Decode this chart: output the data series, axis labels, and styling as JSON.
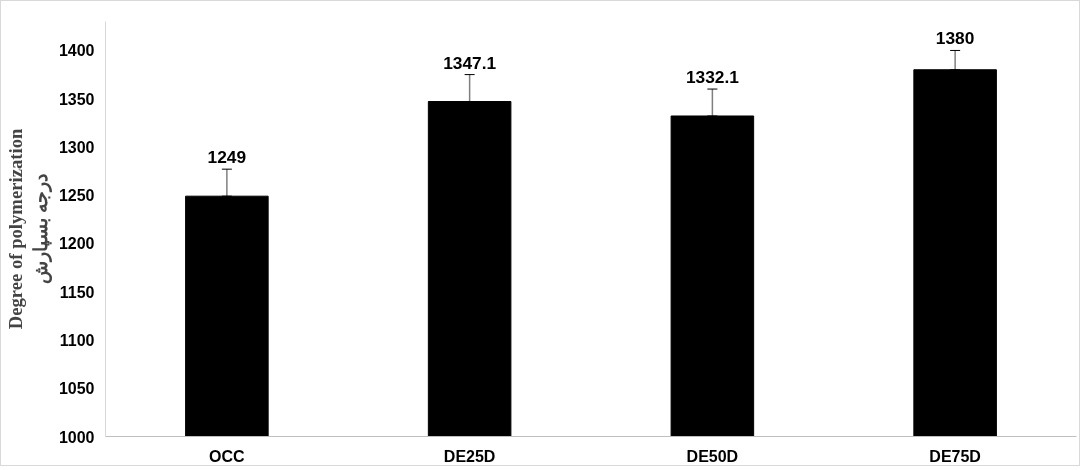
{
  "chart_data": {
    "type": "bar",
    "ylabel": "Degree of polymerization\nدرجه بسپارش",
    "categories": [
      "OCC",
      "DE25D",
      "DE50D",
      "DE75D"
    ],
    "values": [
      1249,
      1347.1,
      1332.1,
      1380
    ],
    "color": "#000000",
    "errors": [
      [
        1249,
        1277
      ],
      [
        1347.1,
        1375
      ],
      [
        1332.1,
        1360
      ],
      [
        1380,
        1400
      ]
    ],
    "ylim": [
      1000,
      1430
    ],
    "yticks": [
      1000,
      1050,
      1100,
      1150,
      1200,
      1250,
      1300,
      1350,
      1400
    ],
    "data_labels": true,
    "grid": false
  }
}
